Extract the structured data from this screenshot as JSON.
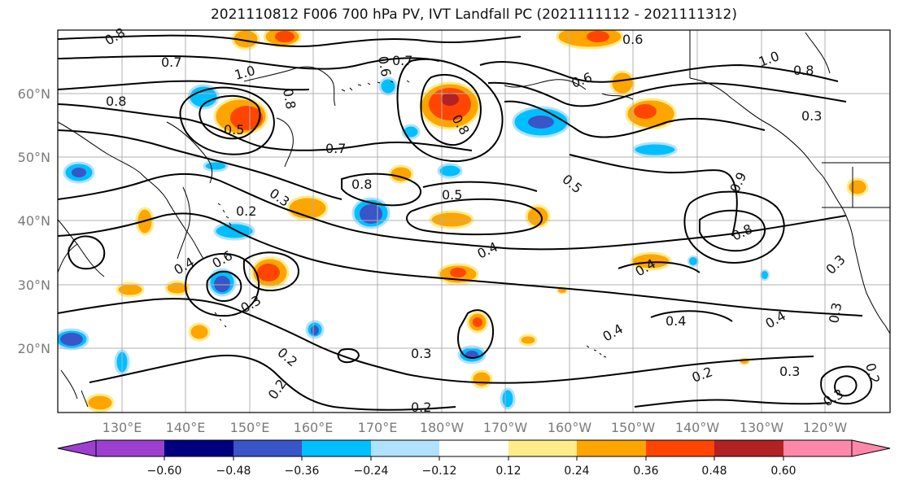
{
  "title": "2021110812 F006 700 hPa PV, IVT Landfall PC (2021111112 - 2021111312)",
  "lat_labels": [
    "60°N",
    "50°N",
    "40°N",
    "30°N",
    "20°N"
  ],
  "lon_labels": [
    "130°E",
    "140°E",
    "150°E",
    "160°E",
    "170°E",
    "180°W",
    "170°W",
    "160°W",
    "150°W",
    "140°W",
    "130°W",
    "120°W"
  ],
  "contour_labels": [
    "0.8",
    "0.7",
    "1.0",
    "0.8",
    "0.5",
    "0.8",
    "0.6",
    "0.7",
    "0.8",
    "0.2",
    "0.3",
    "0.6",
    "0.4",
    "0.3",
    "0.2",
    "0.2",
    "0.7",
    "0.8",
    "0.5",
    "0.4",
    "0.3",
    "0.2",
    "0.6",
    "1.0",
    "0.8",
    "0.3",
    "0.5",
    "0.6",
    "0.4",
    "0.4",
    "0.4",
    "0.3",
    "0.2",
    "0.3",
    "0.8",
    "0.9",
    "0.3",
    "0.4",
    "0.3",
    "0.2"
  ],
  "colorbar": {
    "tick_labels": [
      "−0.60",
      "−0.48",
      "−0.36",
      "−0.24",
      "−0.12",
      "0.12",
      "0.24",
      "0.36",
      "0.48",
      "0.60"
    ],
    "colors": [
      "#9c3fcf",
      "#00007f",
      "#3a55c8",
      "#00bfff",
      "#b0e2ff",
      "#ffffff",
      "#ffec8b",
      "#ffa500",
      "#ff4500",
      "#b22222",
      "#ff88aa",
      "#ff88aa"
    ]
  },
  "palette": {
    "land_line": "#000000",
    "contour": "#000000",
    "grid": "#b0b0b0"
  }
}
